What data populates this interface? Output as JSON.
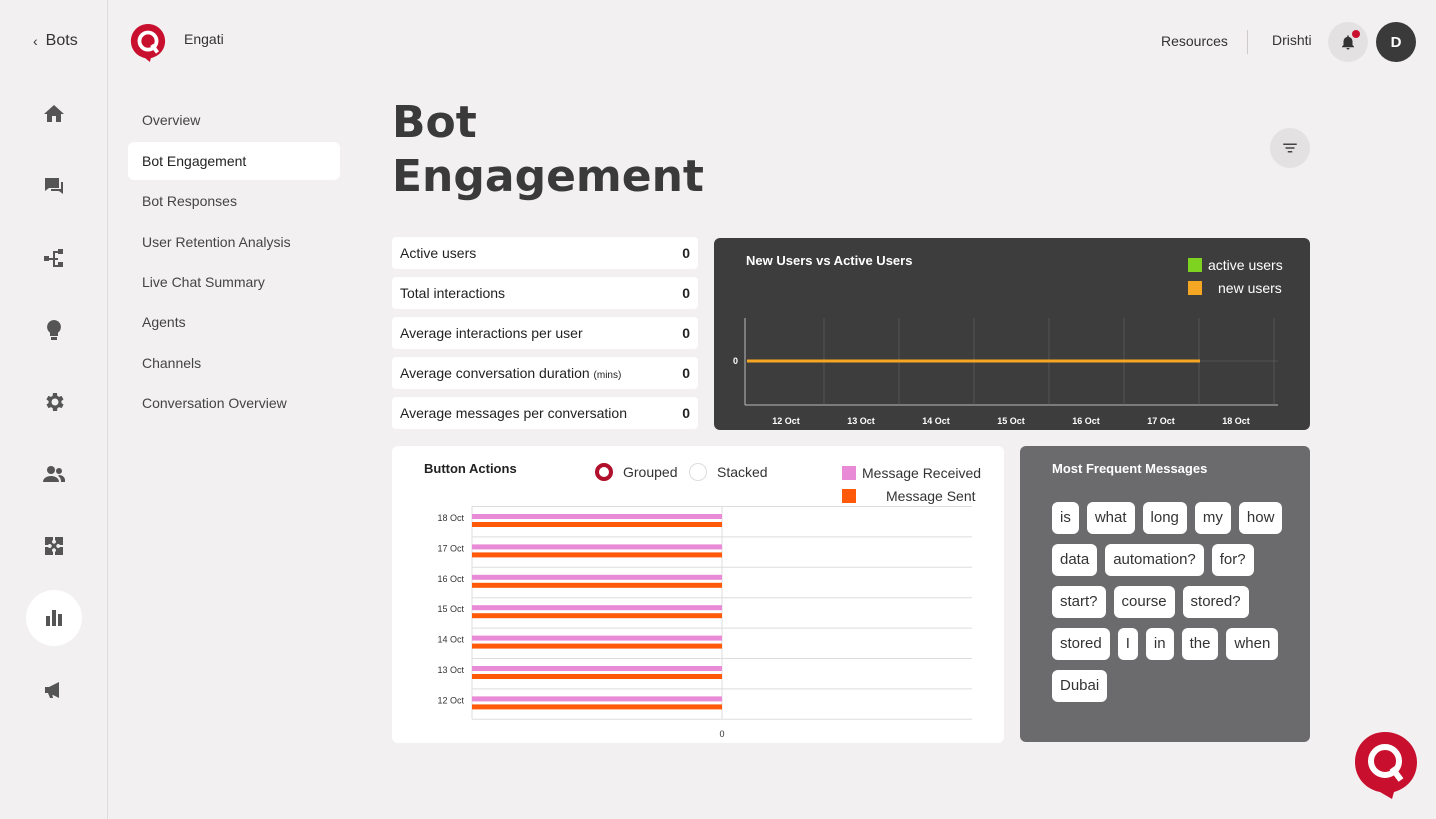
{
  "nav": {
    "back_label": "Bots",
    "rail_icons": [
      "home-icon",
      "chat-icon",
      "flow-icon",
      "bulb-icon",
      "gear-icon",
      "users-icon",
      "puzzle-icon",
      "analytics-icon",
      "megaphone-icon"
    ]
  },
  "header": {
    "brand": "Engati",
    "resources": "Resources",
    "user_name": "Drishti",
    "avatar_initial": "D"
  },
  "subnav": {
    "items": [
      "Overview",
      "Bot Engagement",
      "Bot Responses",
      "User Retention Analysis",
      "Live Chat Summary",
      "Agents",
      "Channels",
      "Conversation Overview"
    ],
    "active": "Bot Engagement"
  },
  "page": {
    "title_line1": "Bot",
    "title_line2": "Engagement"
  },
  "stats": [
    {
      "label": "Active users",
      "suffix": "",
      "value": "0"
    },
    {
      "label": "Total interactions",
      "suffix": "",
      "value": "0"
    },
    {
      "label": "Average interactions per user",
      "suffix": "",
      "value": "0"
    },
    {
      "label": "Average conversation duration ",
      "suffix": "(mins)",
      "value": "0"
    },
    {
      "label": "Average messages per conversation",
      "suffix": "",
      "value": "0"
    }
  ],
  "users_chart": {
    "title": "New Users vs Active Users",
    "legend": [
      "active users",
      "new users"
    ],
    "colors": {
      "active": "#7ed321",
      "new": "#f5a623"
    }
  },
  "button_actions": {
    "title": "Button Actions",
    "mode_grouped": "Grouped",
    "mode_stacked": "Stacked",
    "selected_mode": "Grouped",
    "legend": [
      "Message Received",
      "Message Sent"
    ],
    "colors": {
      "received": "#e88ad6",
      "sent": "#ff5a0a"
    }
  },
  "frequent": {
    "title": "Most Frequent Messages",
    "words": [
      "is",
      "what",
      "long",
      "my",
      "how",
      "data",
      "automation?",
      "for?",
      "start?",
      "course",
      "stored?",
      "stored",
      "I",
      "in",
      "the",
      "when",
      "Dubai"
    ]
  },
  "chart_data": [
    {
      "type": "line",
      "title": "New Users vs Active Users",
      "x": [
        "12 Oct",
        "13 Oct",
        "14 Oct",
        "15 Oct",
        "16 Oct",
        "17 Oct",
        "18 Oct"
      ],
      "y_ticks": [
        "0"
      ],
      "series": [
        {
          "name": "active users",
          "values": [
            0,
            0,
            0,
            0,
            0,
            0,
            0
          ]
        },
        {
          "name": "new users",
          "values": [
            0,
            0,
            0,
            0,
            0,
            0,
            0
          ]
        }
      ],
      "legend": "top-right",
      "grid": true
    },
    {
      "type": "bar",
      "orientation": "horizontal",
      "title": "Button Actions",
      "categories": [
        "18 Oct",
        "17 Oct",
        "16 Oct",
        "15 Oct",
        "14 Oct",
        "13 Oct",
        "12 Oct"
      ],
      "x_ticks": [
        "0"
      ],
      "series": [
        {
          "name": "Message Received",
          "values": [
            0,
            0,
            0,
            0,
            0,
            0,
            0
          ]
        },
        {
          "name": "Message Sent",
          "values": [
            0,
            0,
            0,
            0,
            0,
            0,
            0
          ]
        }
      ],
      "legend": "top-right",
      "grid": true
    }
  ]
}
